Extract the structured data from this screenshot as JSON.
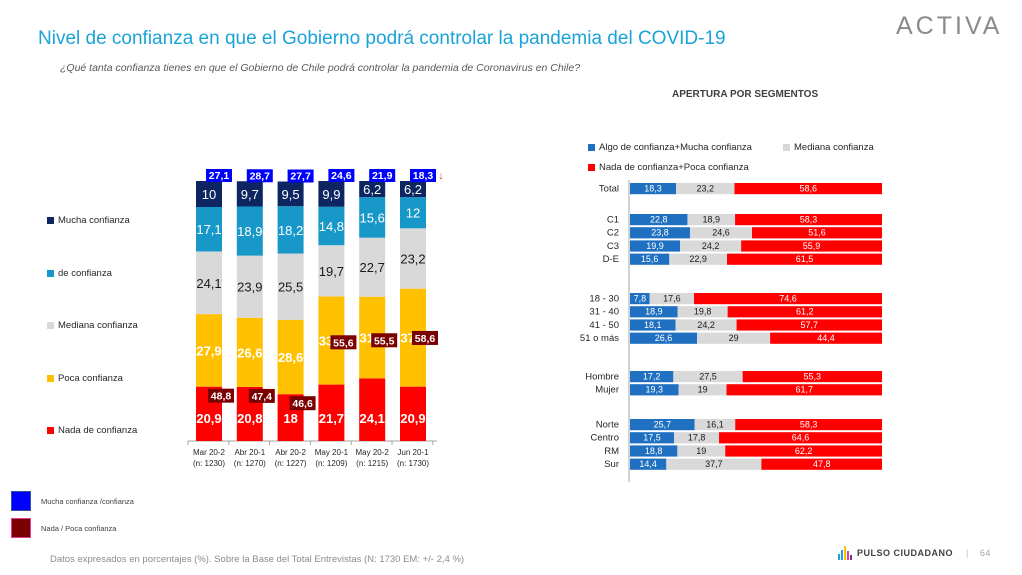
{
  "header": {
    "title": "Nivel de confianza en que el Gobierno podrá controlar la pandemia del COVID-19",
    "subtitle": "¿Qué tanta confianza tienes en que el Gobierno de Chile podrá controlar la pandemia de Coronavirus en Chile?",
    "logo": "ACTIVA"
  },
  "colors": {
    "mucha": "#0d2561",
    "de": "#1798c9",
    "mediana": "#d9d9d9",
    "poca": "#ffc000",
    "nada": "#ff0000",
    "positive_total": "#0000ff",
    "negative_total": "#7b0000",
    "seg_positive": "#1f70c1",
    "seg_mediana": "#d9d9d9",
    "seg_negative": "#ff0000"
  },
  "chart_data": [
    {
      "type": "bar",
      "stacked": true,
      "categories": [
        "Mar 20-2",
        "Abr 20-1",
        "Abr 20-2",
        "May 20-1",
        "May 20-2",
        "Jun 20-1"
      ],
      "sample_sizes": [
        "(n: 1230)",
        "(n: 1270)",
        "(n: 1227)",
        "(n: 1209)",
        "(n: 1215)",
        "(n: 1730)"
      ],
      "series": [
        {
          "name": "Nada de confianza",
          "key": "nada",
          "values": [
            20.9,
            20.8,
            18,
            21.7,
            24.1,
            20.9
          ]
        },
        {
          "name": "Poca confianza",
          "key": "poca",
          "values": [
            27.9,
            26.6,
            28.6,
            33.9,
            31.4,
            37.7
          ]
        },
        {
          "name": "Mediana confianza",
          "key": "mediana",
          "values": [
            24.1,
            23.9,
            25.5,
            19.7,
            22.7,
            23.2
          ]
        },
        {
          "name": "de confianza",
          "key": "de",
          "values": [
            17.1,
            18.9,
            18.2,
            14.8,
            15.6,
            12
          ]
        },
        {
          "name": "Mucha confianza",
          "key": "mucha",
          "values": [
            10,
            9.7,
            9.5,
            9.9,
            6.2,
            6.2
          ]
        }
      ],
      "labels": {
        "nada": [
          "20,9",
          "20,8",
          "18",
          "21,7",
          "24,1",
          "20,9"
        ],
        "poca": [
          "27,9",
          "26,6",
          "28,6",
          "33,9",
          "31,4",
          "37,7"
        ],
        "mediana": [
          "24,1",
          "23,9",
          "25,5",
          "19,7",
          "22,7",
          "23,2"
        ],
        "de": [
          "17,1",
          "18,9",
          "18,2",
          "14,8",
          "15,6",
          "12"
        ],
        "mucha": [
          "10",
          "9,7",
          "9,5",
          "9,9",
          "6,2",
          "6,2"
        ]
      },
      "totals_positive": {
        "name": "Mucha confianza /confianza",
        "values": [
          27.1,
          28.7,
          27.7,
          24.6,
          21.9,
          18.3
        ],
        "labels": [
          "27,1",
          "28,7",
          "27,7",
          "24,6",
          "21,9",
          "18,3"
        ]
      },
      "totals_negative": {
        "name": "Nada / Poca confianza",
        "values": [
          48.8,
          47.4,
          46.6,
          55.6,
          55.5,
          58.6
        ],
        "labels": [
          "48,8",
          "47,4",
          "46,6",
          "55,6",
          "55,5",
          "58,6"
        ]
      },
      "annotation": {
        "last_positive_trend": "down-arrow",
        "glyph": "↓"
      },
      "legend": [
        "Mucha confianza",
        "de confianza",
        "Mediana confianza",
        "Poca confianza",
        "Nada de confianza"
      ],
      "legend_placement": "left",
      "ylim": [
        0,
        100
      ],
      "grid": false
    },
    {
      "type": "bar",
      "orientation": "horizontal",
      "stacked": true,
      "title": "APERTURA POR SEGMENTOS",
      "legend": [
        "Algo de confianza+Mucha confianza",
        "Mediana confianza",
        "Nada de confianza+Poca confianza"
      ],
      "legend_placement": "top",
      "groups": [
        {
          "rows": [
            {
              "label": "Total",
              "values": [
                18.3,
                23.2,
                58.6
              ],
              "labels": [
                "18,3",
                "23,2",
                "58,6"
              ]
            }
          ]
        },
        {
          "rows": [
            {
              "label": "C1",
              "values": [
                22.8,
                18.9,
                58.3
              ],
              "labels": [
                "22,8",
                "18,9",
                "58,3"
              ]
            },
            {
              "label": "C2",
              "values": [
                23.8,
                24.6,
                51.6
              ],
              "labels": [
                "23,8",
                "24,6",
                "51,6"
              ]
            },
            {
              "label": "C3",
              "values": [
                19.9,
                24.2,
                55.9
              ],
              "labels": [
                "19,9",
                "24,2",
                "55,9"
              ]
            },
            {
              "label": "D-E",
              "values": [
                15.6,
                22.9,
                61.5
              ],
              "labels": [
                "15,6",
                "22,9",
                "61,5"
              ]
            }
          ]
        },
        {
          "rows": [
            {
              "label": "18 - 30",
              "values": [
                7.8,
                17.6,
                74.6
              ],
              "labels": [
                "7,8",
                "17,6",
                "74,6"
              ]
            },
            {
              "label": "31 - 40",
              "values": [
                18.9,
                19.8,
                61.2
              ],
              "labels": [
                "18,9",
                "19,8",
                "61,2"
              ]
            },
            {
              "label": "41 - 50",
              "values": [
                18.1,
                24.2,
                57.7
              ],
              "labels": [
                "18,1",
                "24,2",
                "57,7"
              ]
            },
            {
              "label": "51 o más",
              "values": [
                26.6,
                29,
                44.4
              ],
              "labels": [
                "26,6",
                "29",
                "44,4"
              ]
            }
          ]
        },
        {
          "rows": [
            {
              "label": "Hombre",
              "values": [
                17.2,
                27.5,
                55.3
              ],
              "labels": [
                "17,2",
                "27,5",
                "55,3"
              ]
            },
            {
              "label": "Mujer",
              "values": [
                19.3,
                19,
                61.7
              ],
              "labels": [
                "19,3",
                "19",
                "61,7"
              ]
            }
          ]
        },
        {
          "rows": [
            {
              "label": "Norte",
              "values": [
                25.7,
                16.1,
                58.3
              ],
              "labels": [
                "25,7",
                "16,1",
                "58,3"
              ]
            },
            {
              "label": "Centro",
              "values": [
                17.5,
                17.8,
                64.6
              ],
              "labels": [
                "17,5",
                "17,8",
                "64,6"
              ]
            },
            {
              "label": "RM",
              "values": [
                18.8,
                19,
                62.2
              ],
              "labels": [
                "18,8",
                "19",
                "62,2"
              ]
            },
            {
              "label": "Sur",
              "values": [
                14.4,
                37.7,
                47.8
              ],
              "labels": [
                "14,4",
                "37,7",
                "47,8"
              ]
            }
          ]
        }
      ],
      "xlim": [
        0,
        100
      ]
    }
  ],
  "left_legend": {
    "items": [
      "Mucha confianza",
      "de confianza",
      "Mediana confianza",
      "Poca confianza",
      "Nada de confianza"
    ]
  },
  "bottom_legend": {
    "items": [
      "Mucha confianza /confianza",
      "Nada / Poca confianza"
    ]
  },
  "seg_legend": {
    "items": [
      "Algo de confianza+Mucha confianza",
      "Mediana confianza",
      "Nada de confianza+Poca confianza"
    ]
  },
  "footer": {
    "note": "Datos expresados en porcentajes (%). Sobre la Base del Total Entrevistas (N: 1730  EM: +/- 2,4 %)",
    "brand": "PULSO CIUDADANO",
    "separator": "|",
    "page": "64"
  }
}
